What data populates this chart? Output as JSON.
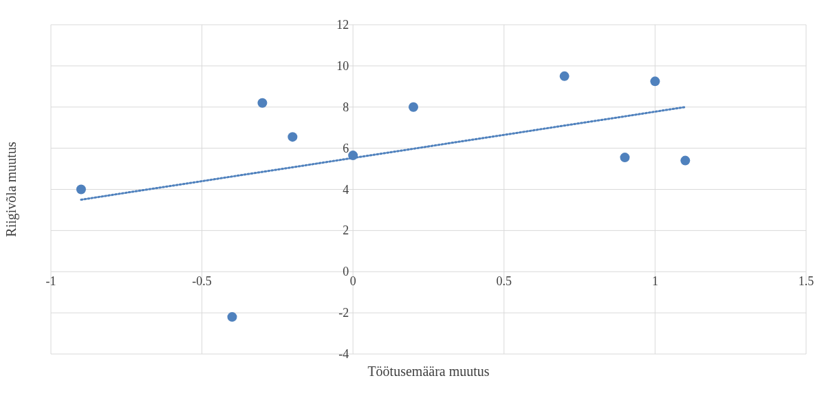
{
  "chart_data": {
    "type": "scatter",
    "xlabel": "Töötusemäära muutus",
    "ylabel": "Riigivõla muutus",
    "xlim": [
      -1,
      1.5
    ],
    "xticks": [
      -1,
      -0.5,
      0,
      0.5,
      1,
      1.5
    ],
    "ylim": [
      -4,
      12
    ],
    "yticks": [
      -4,
      -2,
      0,
      2,
      4,
      6,
      8,
      10,
      12
    ],
    "grid": true,
    "series": [
      {
        "color": "#4f81bd",
        "marker": "circle",
        "x": [
          -0.9,
          -0.4,
          -0.3,
          -0.2,
          0,
          0.2,
          0.7,
          0.9,
          1.0,
          1.1
        ],
        "values": [
          4.0,
          -2.2,
          8.2,
          6.55,
          5.65,
          8.0,
          9.5,
          5.55,
          9.25,
          5.4
        ]
      },
      {
        "type": "line",
        "color": "#4f81bd",
        "line_style": "dotted",
        "marker": "none",
        "x": [
          -0.9,
          1.1
        ],
        "values": [
          3.5,
          8.0
        ]
      }
    ]
  }
}
